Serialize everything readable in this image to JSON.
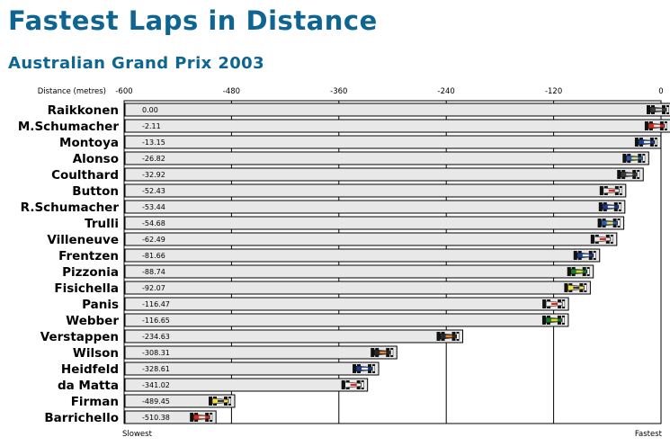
{
  "chart_data": {
    "type": "bar",
    "title": "Fastest Laps in Distance",
    "subtitle": "Australian Grand Prix 2003",
    "xlabel": "Distance (metres)",
    "xlim": [
      -600,
      0
    ],
    "xticks": [
      "-600",
      "-480",
      "-360",
      "-240",
      "-120",
      "0"
    ],
    "xtick_values": [
      -600,
      -480,
      -360,
      -240,
      -120,
      0
    ],
    "left_end_label": "Slowest",
    "right_end_label": "Fastest",
    "grid": true,
    "categories": [
      "Raikkonen",
      "M.Schumacher",
      "Montoya",
      "Alonso",
      "Coulthard",
      "Button",
      "R.Schumacher",
      "Trulli",
      "Villeneuve",
      "Frentzen",
      "Pizzonia",
      "Fisichella",
      "Panis",
      "Webber",
      "Verstappen",
      "Wilson",
      "Heidfeld",
      "da Matta",
      "Firman",
      "Barrichello"
    ],
    "values": [
      0.0,
      -2.11,
      -13.15,
      -26.82,
      -32.92,
      -52.43,
      -53.44,
      -54.68,
      -62.49,
      -81.66,
      -88.74,
      -92.07,
      -116.47,
      -116.65,
      -234.63,
      -308.31,
      -328.61,
      -341.02,
      -489.45,
      -510.38
    ],
    "value_labels": [
      "0.00",
      "-2.11",
      "-13.15",
      "-26.82",
      "-32.92",
      "-52.43",
      "-53.44",
      "-54.68",
      "-62.49",
      "-81.66",
      "-88.74",
      "-92.07",
      "-116.47",
      "-116.65",
      "-234.63",
      "-308.31",
      "-328.61",
      "-341.02",
      "-489.45",
      "-510.38"
    ],
    "car_colors": [
      [
        "#3a3a3a",
        "#c8c8c8"
      ],
      [
        "#d42a1e",
        "#eeeeee"
      ],
      [
        "#1b3c8c",
        "#eeeeee"
      ],
      [
        "#2a5aa8",
        "#f0e040"
      ],
      [
        "#3a3a3a",
        "#c8c8c8"
      ],
      [
        "#e8e8e8",
        "#d42a1e"
      ],
      [
        "#1b3c8c",
        "#eeeeee"
      ],
      [
        "#2a5aa8",
        "#f0e040"
      ],
      [
        "#e8e8e8",
        "#d42a1e"
      ],
      [
        "#1b3c8c",
        "#eeeeee"
      ],
      [
        "#1a7a2a",
        "#f0d020"
      ],
      [
        "#f0e040",
        "#2a2a8a"
      ],
      [
        "#f0f0f0",
        "#d42a1e"
      ],
      [
        "#1a7a2a",
        "#f0d020"
      ],
      [
        "#2a2a2a",
        "#f08020"
      ],
      [
        "#2a2a2a",
        "#f08020"
      ],
      [
        "#1b3c8c",
        "#eeeeee"
      ],
      [
        "#f0f0f0",
        "#d42a1e"
      ],
      [
        "#f0e040",
        "#2a2a8a"
      ],
      [
        "#d42a1e",
        "#eeeeee"
      ]
    ]
  }
}
